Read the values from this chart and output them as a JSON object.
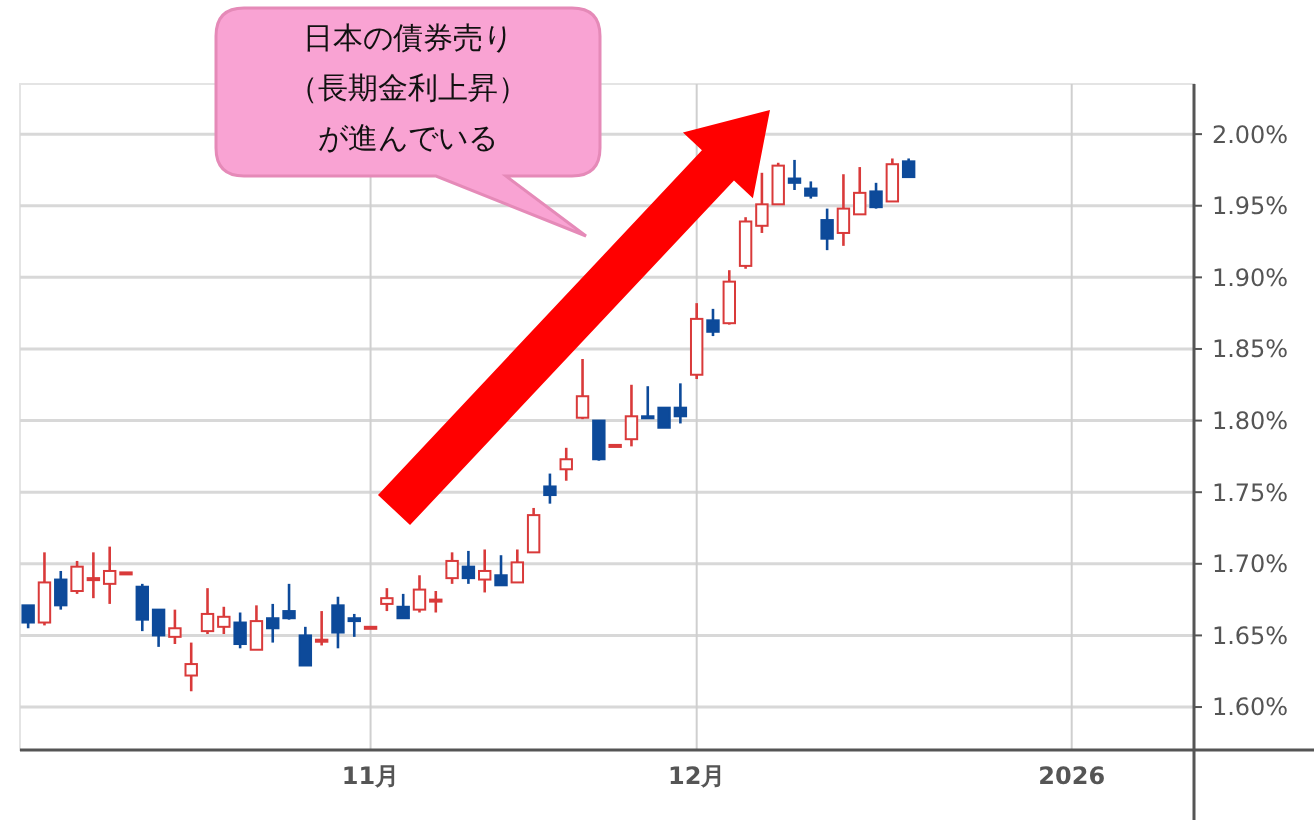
{
  "chart_data": {
    "type": "candlestick",
    "categories": [
      null,
      null,
      null,
      null,
      null,
      null,
      null,
      null,
      null,
      null,
      null,
      null,
      null,
      null,
      null,
      null,
      null,
      null,
      null,
      null,
      null,
      "11月",
      null,
      null,
      null,
      null,
      null,
      null,
      null,
      null,
      null,
      null,
      null,
      null,
      null,
      null,
      null,
      null,
      null,
      null,
      null,
      "12月",
      null,
      null,
      null,
      null,
      null,
      null,
      null,
      null,
      null,
      null,
      null,
      null,
      null,
      null,
      null,
      null,
      null,
      null,
      null,
      null,
      null,
      null,
      "2026",
      null,
      null,
      null,
      null,
      null,
      null,
      null
    ],
    "ohlc": [
      [
        1.671,
        1.671,
        1.655,
        1.659
      ],
      [
        1.659,
        1.708,
        1.657,
        1.687
      ],
      [
        1.689,
        1.695,
        1.668,
        1.671
      ],
      [
        1.681,
        1.702,
        1.679,
        1.698
      ],
      [
        1.689,
        1.708,
        1.676,
        1.69
      ],
      [
        1.686,
        1.712,
        1.672,
        1.695
      ],
      [
        1.694,
        1.694,
        1.693,
        1.694
      ],
      [
        1.684,
        1.686,
        1.653,
        1.661
      ],
      [
        1.668,
        1.668,
        1.642,
        1.65
      ],
      [
        1.649,
        1.668,
        1.644,
        1.655
      ],
      [
        1.622,
        1.645,
        1.611,
        1.63
      ],
      [
        1.653,
        1.683,
        1.651,
        1.665
      ],
      [
        1.656,
        1.67,
        1.651,
        1.663
      ],
      [
        1.659,
        1.666,
        1.641,
        1.644
      ],
      [
        1.64,
        1.671,
        1.64,
        1.66
      ],
      [
        1.662,
        1.672,
        1.645,
        1.655
      ],
      [
        1.667,
        1.686,
        1.661,
        1.662
      ],
      [
        1.65,
        1.656,
        1.629,
        1.629
      ],
      [
        1.646,
        1.667,
        1.643,
        1.647
      ],
      [
        1.671,
        1.677,
        1.641,
        1.652
      ],
      [
        1.662,
        1.665,
        1.649,
        1.66
      ],
      [
        1.655,
        1.656,
        1.655,
        1.656
      ],
      [
        1.672,
        1.683,
        1.667,
        1.676
      ],
      [
        1.67,
        1.679,
        1.662,
        1.662
      ],
      [
        1.668,
        1.692,
        1.666,
        1.682
      ],
      [
        1.674,
        1.681,
        1.666,
        1.675
      ],
      [
        1.69,
        1.708,
        1.686,
        1.702
      ],
      [
        1.698,
        1.709,
        1.686,
        1.69
      ],
      [
        1.689,
        1.71,
        1.68,
        1.695
      ],
      [
        1.692,
        1.706,
        1.685,
        1.685
      ],
      [
        1.687,
        1.71,
        1.687,
        1.701
      ],
      [
        1.708,
        1.739,
        1.708,
        1.734
      ],
      [
        1.754,
        1.763,
        1.742,
        1.748
      ],
      [
        1.766,
        1.781,
        1.758,
        1.773
      ],
      [
        1.802,
        1.843,
        1.801,
        1.817
      ],
      [
        1.8,
        1.8,
        1.772,
        1.773
      ],
      [
        1.782,
        1.783,
        1.782,
        1.783
      ],
      [
        1.787,
        1.825,
        1.782,
        1.803
      ],
      [
        1.803,
        1.824,
        1.802,
        1.802
      ],
      [
        1.809,
        1.809,
        1.795,
        1.795
      ],
      [
        1.809,
        1.826,
        1.798,
        1.803
      ],
      [
        1.832,
        1.882,
        1.829,
        1.871
      ],
      [
        1.87,
        1.878,
        1.859,
        1.862
      ],
      [
        1.868,
        1.905,
        1.867,
        1.897
      ],
      [
        1.908,
        1.942,
        1.906,
        1.939
      ],
      [
        1.936,
        1.973,
        1.931,
        1.951
      ],
      [
        1.951,
        1.98,
        1.951,
        1.978
      ],
      [
        1.969,
        1.982,
        1.961,
        1.966
      ],
      [
        1.962,
        1.967,
        1.955,
        1.957
      ],
      [
        1.94,
        1.948,
        1.919,
        1.927
      ],
      [
        1.931,
        1.972,
        1.922,
        1.948
      ],
      [
        1.944,
        1.977,
        1.944,
        1.959
      ],
      [
        1.96,
        1.966,
        1.948,
        1.949
      ],
      [
        1.953,
        1.983,
        1.953,
        1.979
      ],
      [
        1.981,
        1.983,
        1.97,
        1.97
      ],
      null,
      null,
      null,
      null,
      null,
      null,
      null,
      null,
      null,
      null,
      null,
      null,
      null,
      null,
      null,
      null,
      null
    ],
    "colors": [
      "#0d4a9a",
      "#d93a3a",
      "#0d4a9a",
      "#d93a3a",
      "#d93a3a",
      "#d93a3a",
      "#d93a3a",
      "#0d4a9a",
      "#0d4a9a",
      "#d93a3a",
      "#d93a3a",
      "#d93a3a",
      "#d93a3a",
      "#0d4a9a",
      "#d93a3a",
      "#0d4a9a",
      "#0d4a9a",
      "#0d4a9a",
      "#d93a3a",
      "#0d4a9a",
      "#0d4a9a",
      "#d93a3a",
      "#d93a3a",
      "#0d4a9a",
      "#d93a3a",
      "#d93a3a",
      "#d93a3a",
      "#0d4a9a",
      "#d93a3a",
      "#0d4a9a",
      "#d93a3a",
      "#d93a3a",
      "#0d4a9a",
      "#d93a3a",
      "#d93a3a",
      "#0d4a9a",
      "#d93a3a",
      "#d93a3a",
      "#0d4a9a",
      "#0d4a9a",
      "#0d4a9a",
      "#d93a3a",
      "#0d4a9a",
      "#d93a3a",
      "#d93a3a",
      "#d93a3a",
      "#d93a3a",
      "#0d4a9a",
      "#0d4a9a",
      "#0d4a9a",
      "#d93a3a",
      "#d93a3a",
      "#0d4a9a",
      "#d93a3a",
      "#0d4a9a",
      null,
      null,
      null,
      null,
      null,
      null,
      null,
      null,
      null,
      null,
      null,
      null,
      null,
      null,
      null,
      null,
      null
    ],
    "ylim": [
      1.57,
      2.035
    ],
    "yticks": [
      {
        "value": 1.6,
        "label": "1.60%"
      },
      {
        "value": 1.65,
        "label": "1.65%"
      },
      {
        "value": 1.7,
        "label": "1.70%"
      },
      {
        "value": 1.75,
        "label": "1.75%"
      },
      {
        "value": 1.8,
        "label": "1.80%"
      },
      {
        "value": 1.85,
        "label": "1.85%"
      },
      {
        "value": 1.9,
        "label": "1.90%"
      },
      {
        "value": 1.95,
        "label": "1.95%"
      },
      {
        "value": 2.0,
        "label": "2.00%"
      }
    ],
    "grid": true,
    "annotations": [
      "日本の債券売り",
      "（長期金利上昇）",
      "が進んでいる"
    ]
  }
}
